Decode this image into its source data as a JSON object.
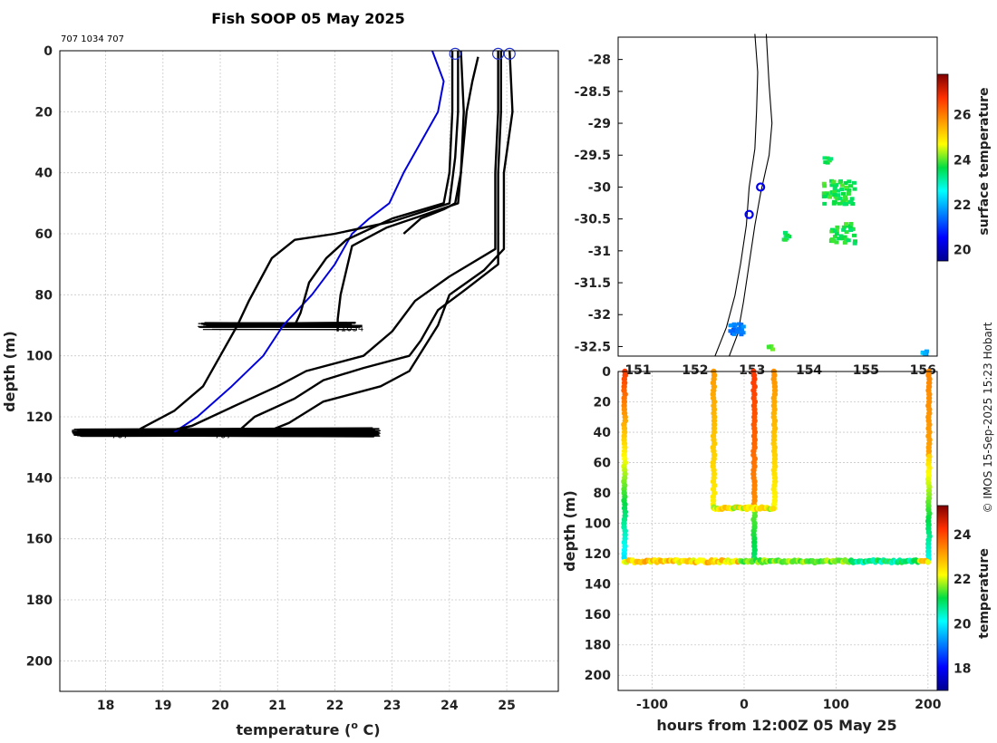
{
  "title": "Fish SOOP 05 May 2025",
  "header_ids": "707 1034 707",
  "copyright": "© IMOS 15-Sep-2025 15:23 Hobart",
  "chart_data": [
    {
      "type": "line",
      "panel": "profiles",
      "xlabel": "temperature (",
      "xlabel_unit": "o",
      "xlabel_suffix": " C)",
      "ylabel": "depth (m)",
      "xlim": [
        17.2,
        25.9
      ],
      "ylim": [
        0,
        210
      ],
      "y_reversed": true,
      "xticks": [
        "18",
        "19",
        "20",
        "21",
        "22",
        "23",
        "24",
        "25"
      ],
      "yticks": [
        "0",
        "20",
        "40",
        "60",
        "80",
        "100",
        "120",
        "140",
        "160",
        "180",
        "200"
      ],
      "grid": true,
      "bottom_labels": [
        {
          "text": "1034",
          "x": 22.1,
          "y": 92
        },
        {
          "text": "707",
          "x": 18.1,
          "y": 127
        },
        {
          "text": "707",
          "x": 19.9,
          "y": 127
        }
      ],
      "surface_markers": [
        [
          24.1,
          1
        ],
        [
          24.85,
          1
        ],
        [
          25.05,
          1
        ]
      ],
      "series": [
        {
          "color": "#0000dd",
          "points": [
            [
              23.7,
              0
            ],
            [
              23.9,
              10
            ],
            [
              23.8,
              20
            ],
            [
              23.5,
              30
            ],
            [
              23.2,
              40
            ],
            [
              22.95,
              50
            ],
            [
              22.6,
              55
            ],
            [
              22.3,
              60
            ],
            [
              22.0,
              70
            ],
            [
              21.6,
              80
            ],
            [
              21.1,
              90
            ],
            [
              20.75,
              100
            ],
            [
              20.2,
              110
            ],
            [
              19.6,
              120
            ],
            [
              19.2,
              125
            ]
          ]
        },
        {
          "color": "#000000",
          "points": [
            [
              24.05,
              0
            ],
            [
              24.05,
              20
            ],
            [
              24.0,
              40
            ],
            [
              23.9,
              50
            ],
            [
              23.0,
              55
            ],
            [
              22.2,
              62
            ],
            [
              21.85,
              68
            ],
            [
              21.55,
              76
            ],
            [
              21.4,
              86
            ],
            [
              21.3,
              90
            ]
          ]
        },
        {
          "color": "#000000",
          "points": [
            [
              24.2,
              0
            ],
            [
              24.25,
              20
            ],
            [
              24.2,
              40
            ],
            [
              24.15,
              50
            ],
            [
              22.9,
              58
            ],
            [
              22.3,
              64
            ],
            [
              22.2,
              72
            ],
            [
              22.1,
              80
            ],
            [
              22.05,
              88
            ],
            [
              22.05,
              92
            ]
          ]
        },
        {
          "color": "#000000",
          "points": [
            [
              24.15,
              0
            ],
            [
              24.15,
              20
            ],
            [
              24.1,
              35
            ],
            [
              24.0,
              50
            ],
            [
              23.0,
              56
            ],
            [
              22.0,
              60
            ],
            [
              21.3,
              62
            ],
            [
              20.9,
              68
            ],
            [
              20.7,
              75
            ],
            [
              20.5,
              82
            ],
            [
              20.3,
              90
            ],
            [
              20.0,
              100
            ],
            [
              19.7,
              110
            ],
            [
              19.2,
              118
            ],
            [
              18.6,
              124
            ]
          ]
        },
        {
          "color": "#000000",
          "points": [
            [
              24.5,
              2
            ],
            [
              24.4,
              10
            ],
            [
              24.3,
              20
            ],
            [
              24.2,
              40
            ],
            [
              24.1,
              50
            ],
            [
              23.9,
              52
            ],
            [
              23.5,
              55
            ],
            [
              23.2,
              60
            ]
          ]
        },
        {
          "color": "#000000",
          "points": [
            [
              24.85,
              0
            ],
            [
              24.85,
              20
            ],
            [
              24.8,
              40
            ],
            [
              24.8,
              65
            ],
            [
              24.0,
              74
            ],
            [
              23.4,
              82
            ],
            [
              23.0,
              92
            ],
            [
              22.5,
              100
            ],
            [
              21.5,
              105
            ],
            [
              21.0,
              110
            ],
            [
              20.3,
              116
            ],
            [
              19.5,
              123
            ],
            [
              19.0,
              125
            ]
          ]
        },
        {
          "color": "#000000",
          "points": [
            [
              24.9,
              0
            ],
            [
              24.9,
              20
            ],
            [
              24.85,
              40
            ],
            [
              24.85,
              70
            ],
            [
              24.3,
              78
            ],
            [
              23.8,
              85
            ],
            [
              23.5,
              95
            ],
            [
              23.3,
              100
            ],
            [
              22.5,
              104
            ],
            [
              21.8,
              108
            ],
            [
              21.3,
              114
            ],
            [
              20.6,
              120
            ],
            [
              20.3,
              125
            ]
          ]
        },
        {
          "color": "#000000",
          "points": [
            [
              25.05,
              0
            ],
            [
              25.1,
              20
            ],
            [
              24.95,
              40
            ],
            [
              24.95,
              65
            ],
            [
              24.6,
              72
            ],
            [
              24.0,
              80
            ],
            [
              23.8,
              90
            ],
            [
              23.3,
              105
            ],
            [
              22.8,
              110
            ],
            [
              21.8,
              115
            ],
            [
              21.2,
              122
            ],
            [
              20.8,
              125
            ]
          ]
        }
      ]
    },
    {
      "type": "scatter",
      "panel": "map",
      "colorbar_label": "surface temperature",
      "colorbar_ticks": [
        "20",
        "22",
        "24",
        "26"
      ],
      "colorbar_range": [
        19.5,
        27.8
      ],
      "lon_ticks": [
        "151",
        "152",
        "153",
        "154",
        "155",
        "156"
      ],
      "lat_ticks": [
        "-28",
        "-28.5",
        "-29",
        "-29.5",
        "-30",
        "-30.5",
        "-31",
        "-31.5",
        "-32",
        "-32.5"
      ],
      "lon_range": [
        150.65,
        156.25
      ],
      "lat_range": [
        -32.65,
        -27.65
      ],
      "stations": [
        [
          153.15,
          -30.0
        ],
        [
          152.95,
          -30.43
        ]
      ]
    },
    {
      "type": "scatter",
      "panel": "section",
      "xlabel": "hours from 12:00Z 05 May 25",
      "ylabel": "depth (m)",
      "xlim": [
        -137,
        210
      ],
      "ylim": [
        0,
        210
      ],
      "y_reversed": true,
      "xticks": [
        "-100",
        "0",
        "100",
        "200"
      ],
      "yticks": [
        "0",
        "20",
        "40",
        "60",
        "80",
        "100",
        "120",
        "140",
        "160",
        "180",
        "200"
      ],
      "colorbar_label": "temperature",
      "colorbar_ticks": [
        "18",
        "20",
        "22",
        "24"
      ],
      "colorbar_range": [
        17,
        25.3
      ]
    }
  ]
}
